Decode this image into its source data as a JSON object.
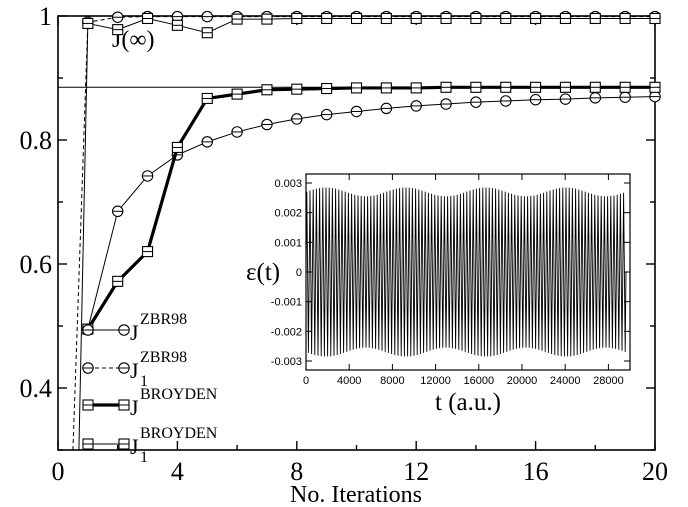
{
  "chart_data": [
    {
      "type": "line",
      "title": "",
      "xlabel": "No. Iterations",
      "ylabel": "",
      "xlim": [
        0,
        20
      ],
      "ylim": [
        0.3,
        1.0
      ],
      "xticks": [
        "0",
        "4",
        "8",
        "12",
        "16",
        "20"
      ],
      "yticks": [
        "0.4",
        "0.6",
        "0.8",
        "1"
      ],
      "grid": false,
      "legend_position": "left-bottom",
      "annotations": [
        {
          "text": "J(∞)",
          "y": 0.885
        }
      ],
      "reference_line": {
        "y": 0.885
      },
      "series": [
        {
          "name": "J",
          "sup": "ZBR98",
          "sub": "",
          "marker": "circle",
          "line": "solid-thin",
          "x": [
            1,
            2,
            3,
            4,
            5,
            6,
            7,
            8,
            9,
            10,
            11,
            12,
            13,
            14,
            15,
            16,
            17,
            18,
            19,
            20
          ],
          "y": [
            0.495,
            0.685,
            0.742,
            0.776,
            0.797,
            0.813,
            0.825,
            0.834,
            0.841,
            0.846,
            0.851,
            0.855,
            0.858,
            0.861,
            0.863,
            0.865,
            0.866,
            0.868,
            0.869,
            0.87
          ]
        },
        {
          "name": "J",
          "sup": "ZBR98",
          "sub": "1",
          "marker": "circle",
          "line": "dashed",
          "x": [
            0.5,
            1,
            2,
            3,
            4,
            5,
            6,
            7,
            8,
            9,
            10,
            11,
            12,
            13,
            14,
            15,
            16,
            17,
            18,
            19,
            20
          ],
          "y": [
            0.3,
            0.99,
            0.998,
            0.999,
            0.999,
            0.999,
            0.999,
            0.999,
            0.999,
            0.999,
            0.999,
            0.999,
            0.999,
            0.999,
            0.999,
            0.999,
            0.999,
            0.999,
            0.999,
            0.999,
            0.999
          ]
        },
        {
          "name": "J",
          "sup": "BROYDEN",
          "sub": "",
          "marker": "square",
          "line": "solid-thick",
          "x": [
            1,
            2,
            3,
            4,
            5,
            6,
            7,
            8,
            9,
            10,
            11,
            12,
            13,
            14,
            15,
            16,
            17,
            18,
            19,
            20
          ],
          "y": [
            0.495,
            0.572,
            0.62,
            0.788,
            0.867,
            0.874,
            0.881,
            0.882,
            0.883,
            0.884,
            0.884,
            0.884,
            0.885,
            0.885,
            0.885,
            0.885,
            0.885,
            0.885,
            0.885,
            0.885
          ]
        },
        {
          "name": "J",
          "sup": "BROYDEN",
          "sub": "1",
          "marker": "square",
          "line": "solid-thin",
          "x": [
            0.7,
            1,
            2,
            3,
            4,
            5,
            6,
            7,
            8,
            9,
            10,
            11,
            12,
            13,
            14,
            15,
            16,
            17,
            18,
            19,
            20
          ],
          "y": [
            0.3,
            0.988,
            0.978,
            0.996,
            0.985,
            0.973,
            0.995,
            0.995,
            0.996,
            0.996,
            0.996,
            0.996,
            0.996,
            0.996,
            0.996,
            0.996,
            0.996,
            0.996,
            0.996,
            0.996,
            0.996
          ]
        }
      ]
    },
    {
      "type": "line",
      "title": "",
      "xlabel": "t (a.u.)",
      "ylabel": "ε(t)",
      "xlim": [
        0,
        30000
      ],
      "ylim": [
        -0.003,
        0.003
      ],
      "xticks": [
        "0",
        "4000",
        "8000",
        "12000",
        "16000",
        "20000",
        "24000",
        "28000"
      ],
      "yticks": [
        "-0.003",
        "-0.002",
        "-0.001",
        "0",
        "0.001",
        "0.002",
        "0.003"
      ],
      "grid": false,
      "signal": {
        "carrier_cycles": 100,
        "base_amplitude": 0.0027,
        "modulation_amplitude": 0.00015,
        "modulation_periods": 4
      }
    }
  ]
}
